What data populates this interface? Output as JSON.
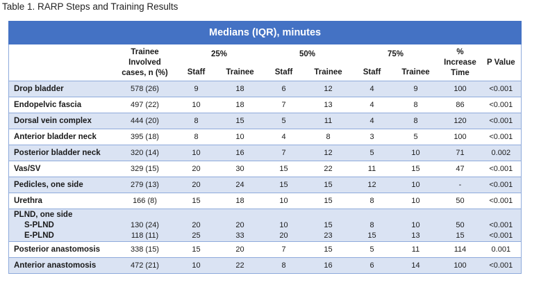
{
  "caption": "Table 1. RARP Steps and Training Results",
  "banner": "Medians (IQR), minutes",
  "headers": {
    "trainee_cases": [
      "Trainee",
      "Involved",
      "cases, n (%)"
    ],
    "p25": "25%",
    "p50": "50%",
    "p75": "75%",
    "pct_increase": [
      "%",
      "Increase",
      "Time"
    ],
    "p_value": "P Value",
    "staff": "Staff",
    "trainee": "Trainee"
  },
  "rows": [
    {
      "step": "Drop bladder",
      "cases": "578 (26)",
      "s25": "9",
      "t25": "18",
      "s50": "6",
      "t50": "12",
      "s75": "4",
      "t75": "9",
      "inc": "100",
      "p": "<0.001"
    },
    {
      "step": "Endopelvic fascia",
      "cases": "497 (22)",
      "s25": "10",
      "t25": "18",
      "s50": "7",
      "t50": "13",
      "s75": "4",
      "t75": "8",
      "inc": "86",
      "p": "<0.001"
    },
    {
      "step": "Dorsal vein complex",
      "cases": "444 (20)",
      "s25": "8",
      "t25": "15",
      "s50": "5",
      "t50": "11",
      "s75": "4",
      "t75": "8",
      "inc": "120",
      "p": "<0.001"
    },
    {
      "step": "Anterior bladder neck",
      "cases": "395 (18)",
      "s25": "8",
      "t25": "10",
      "s50": "4",
      "t50": "8",
      "s75": "3",
      "t75": "5",
      "inc": "100",
      "p": "<0.001"
    },
    {
      "step": "Posterior bladder neck",
      "cases": "320 (14)",
      "s25": "10",
      "t25": "16",
      "s50": "7",
      "t50": "12",
      "s75": "5",
      "t75": "10",
      "inc": "71",
      "p": "0.002"
    },
    {
      "step": "Vas/SV",
      "cases": "329 (15)",
      "s25": "20",
      "t25": "30",
      "s50": "15",
      "t50": "22",
      "s75": "11",
      "t75": "15",
      "inc": "47",
      "p": "<0.001"
    },
    {
      "step": "Pedicles, one side",
      "cases": "279 (13)",
      "s25": "20",
      "t25": "24",
      "s50": "15",
      "t50": "15",
      "s75": "12",
      "t75": "10",
      "inc": "-",
      "p": "<0.001"
    },
    {
      "step": "Urethra",
      "cases": "166 (8)",
      "s25": "15",
      "t25": "18",
      "s50": "10",
      "t50": "15",
      "s75": "8",
      "t75": "10",
      "inc": "50",
      "p": "<0.001"
    }
  ],
  "plnd": {
    "step": "PLND, one side",
    "subs": [
      {
        "step": "S-PLND",
        "cases": "130 (24)",
        "s25": "20",
        "t25": "20",
        "s50": "10",
        "t50": "15",
        "s75": "8",
        "t75": "10",
        "inc": "50",
        "p": "<0.001"
      },
      {
        "step": "E-PLND",
        "cases": "118 (11)",
        "s25": "25",
        "t25": "33",
        "s50": "20",
        "t50": "23",
        "s75": "15",
        "t75": "13",
        "inc": "15",
        "p": "<0.001"
      }
    ]
  },
  "rows_after": [
    {
      "step": "Posterior anastomosis",
      "cases": "338 (15)",
      "s25": "15",
      "t25": "20",
      "s50": "7",
      "t50": "15",
      "s75": "5",
      "t75": "11",
      "inc": "114",
      "p": "0.001"
    },
    {
      "step": "Anterior anastomosis",
      "cases": "472 (21)",
      "s25": "10",
      "t25": "22",
      "s50": "8",
      "t50": "16",
      "s75": "6",
      "t75": "14",
      "inc": "100",
      "p": "<0.001"
    }
  ]
}
